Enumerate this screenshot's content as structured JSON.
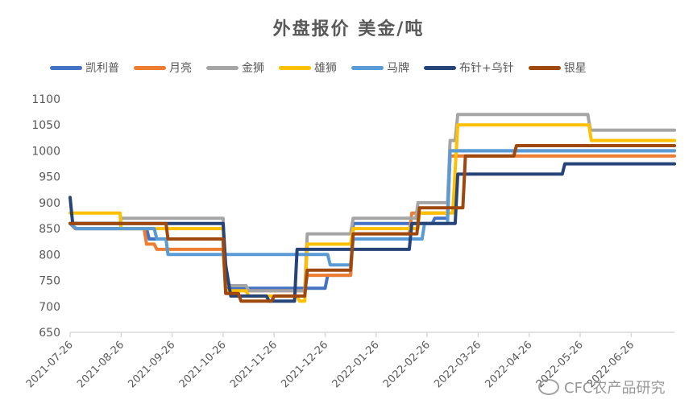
{
  "chart_data": {
    "type": "line",
    "subtype": "step",
    "title": "外盘报价 美金/吨",
    "xlabel": "",
    "ylabel": "",
    "ylim": [
      650,
      1100
    ],
    "yticks": [
      650,
      700,
      750,
      800,
      850,
      900,
      950,
      1000,
      1050,
      1100
    ],
    "x_tick_labels": [
      "2021-07-26",
      "2021-08-26",
      "2021-09-26",
      "2021-10-26",
      "2021-11-26",
      "2021-12-26",
      "2022-01-26",
      "2022-02-26",
      "2022-03-26",
      "2022-04-26",
      "2022-05-26",
      "2022-06-26"
    ],
    "x_unit": "months since 2021-07-26",
    "x_range": [
      0,
      11.85
    ],
    "grid": false,
    "legend_position": "top",
    "series": [
      {
        "name": "凯利普",
        "color": "#4472C4",
        "points": [
          [
            0,
            860
          ],
          [
            0.1,
            850
          ],
          [
            1.5,
            850
          ],
          [
            1.55,
            830
          ],
          [
            3.0,
            830
          ],
          [
            3.05,
            735
          ],
          [
            5.0,
            735
          ],
          [
            5.05,
            760
          ],
          [
            5.5,
            760
          ],
          [
            5.55,
            860
          ],
          [
            7.1,
            860
          ],
          [
            7.15,
            870
          ],
          [
            7.4,
            870
          ],
          [
            7.45,
            1000
          ],
          [
            11.85,
            1000
          ]
        ]
      },
      {
        "name": "月亮",
        "color": "#ED7D31",
        "points": [
          [
            0,
            860
          ],
          [
            0.1,
            850
          ],
          [
            1.45,
            850
          ],
          [
            1.5,
            820
          ],
          [
            1.65,
            820
          ],
          [
            1.7,
            810
          ],
          [
            3.0,
            810
          ],
          [
            3.05,
            730
          ],
          [
            4.6,
            730
          ],
          [
            4.65,
            760
          ],
          [
            5.5,
            760
          ],
          [
            5.55,
            840
          ],
          [
            6.65,
            840
          ],
          [
            6.7,
            880
          ],
          [
            7.4,
            880
          ],
          [
            7.45,
            990
          ],
          [
            11.85,
            990
          ]
        ]
      },
      {
        "name": "金狮",
        "color": "#A5A5A5",
        "points": [
          [
            0,
            860
          ],
          [
            0.98,
            860
          ],
          [
            1.0,
            870
          ],
          [
            3.0,
            870
          ],
          [
            3.05,
            740
          ],
          [
            3.45,
            740
          ],
          [
            3.5,
            730
          ],
          [
            4.6,
            730
          ],
          [
            4.65,
            840
          ],
          [
            5.5,
            840
          ],
          [
            5.55,
            870
          ],
          [
            6.78,
            870
          ],
          [
            6.82,
            900
          ],
          [
            7.4,
            900
          ],
          [
            7.45,
            1020
          ],
          [
            7.55,
            1020
          ],
          [
            7.6,
            1070
          ],
          [
            10.15,
            1070
          ],
          [
            10.2,
            1040
          ],
          [
            11.85,
            1040
          ]
        ]
      },
      {
        "name": "雄狮",
        "color": "#FFC000",
        "points": [
          [
            0,
            880
          ],
          [
            0.98,
            880
          ],
          [
            1.0,
            850
          ],
          [
            3.0,
            850
          ],
          [
            3.05,
            730
          ],
          [
            3.45,
            730
          ],
          [
            3.5,
            720
          ],
          [
            4.45,
            720
          ],
          [
            4.5,
            710
          ],
          [
            4.6,
            710
          ],
          [
            4.65,
            820
          ],
          [
            5.5,
            820
          ],
          [
            5.55,
            850
          ],
          [
            6.82,
            850
          ],
          [
            6.85,
            880
          ],
          [
            7.5,
            880
          ],
          [
            7.6,
            1050
          ],
          [
            10.17,
            1050
          ],
          [
            10.22,
            1020
          ],
          [
            11.85,
            1020
          ]
        ]
      },
      {
        "name": "马牌",
        "color": "#5B9BD5",
        "points": [
          [
            0,
            860
          ],
          [
            0.12,
            850
          ],
          [
            1.65,
            850
          ],
          [
            1.7,
            830
          ],
          [
            1.88,
            830
          ],
          [
            1.92,
            800
          ],
          [
            5.05,
            800
          ],
          [
            5.1,
            780
          ],
          [
            5.5,
            780
          ],
          [
            5.55,
            830
          ],
          [
            6.9,
            830
          ],
          [
            6.95,
            860
          ],
          [
            7.4,
            860
          ],
          [
            7.45,
            1000
          ],
          [
            11.85,
            1000
          ]
        ]
      },
      {
        "name": "布针+乌针",
        "color": "#264478",
        "points": [
          [
            0,
            910
          ],
          [
            0.05,
            860
          ],
          [
            3.0,
            860
          ],
          [
            3.05,
            780
          ],
          [
            3.15,
            720
          ],
          [
            3.85,
            720
          ],
          [
            3.9,
            710
          ],
          [
            4.4,
            710
          ],
          [
            4.45,
            810
          ],
          [
            6.65,
            810
          ],
          [
            6.7,
            860
          ],
          [
            7.55,
            860
          ],
          [
            7.6,
            955
          ],
          [
            9.65,
            955
          ],
          [
            9.7,
            975
          ],
          [
            11.85,
            975
          ]
        ]
      },
      {
        "name": "银星",
        "color": "#9E480E",
        "points": [
          [
            0,
            860
          ],
          [
            1.88,
            860
          ],
          [
            1.92,
            830
          ],
          [
            3.0,
            830
          ],
          [
            3.05,
            725
          ],
          [
            3.3,
            725
          ],
          [
            3.35,
            710
          ],
          [
            3.95,
            710
          ],
          [
            4.0,
            720
          ],
          [
            4.6,
            720
          ],
          [
            4.65,
            770
          ],
          [
            5.5,
            770
          ],
          [
            5.55,
            840
          ],
          [
            6.8,
            840
          ],
          [
            6.85,
            890
          ],
          [
            7.7,
            890
          ],
          [
            7.75,
            990
          ],
          [
            8.7,
            990
          ],
          [
            8.75,
            1010
          ],
          [
            11.85,
            1010
          ]
        ]
      }
    ]
  },
  "watermark": {
    "text": "CFC农产品研究"
  }
}
